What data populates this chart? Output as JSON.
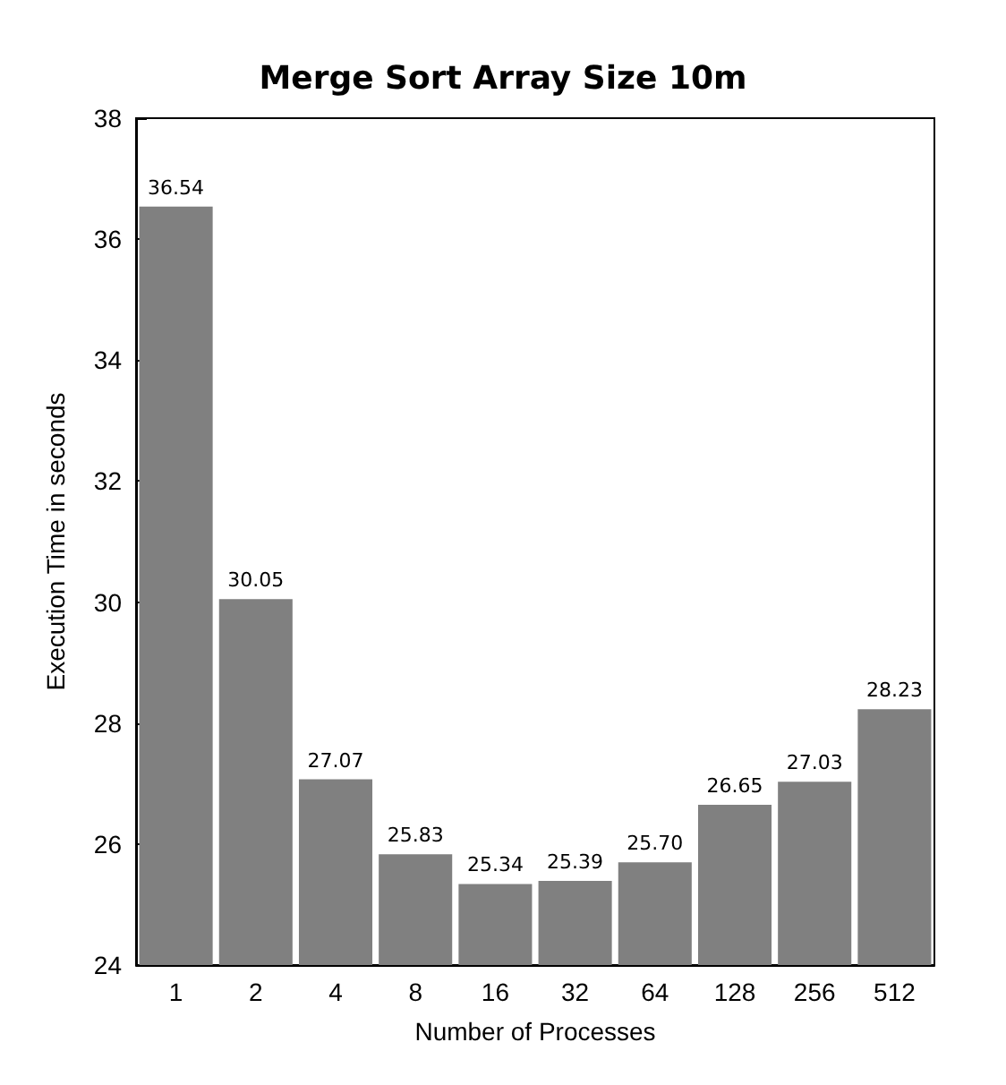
{
  "chart_data": {
    "type": "bar",
    "title": "Merge Sort Array Size 10m",
    "xlabel": "Number of Processes",
    "ylabel": "Execution Time in seconds",
    "categories": [
      "1",
      "2",
      "4",
      "8",
      "16",
      "32",
      "64",
      "128",
      "256",
      "512"
    ],
    "values": [
      36.54,
      30.05,
      27.07,
      25.83,
      25.34,
      25.39,
      25.7,
      26.65,
      27.03,
      28.23
    ],
    "value_labels": [
      "36.54",
      "30.05",
      "27.07",
      "25.83",
      "25.34",
      "25.39",
      "25.70",
      "26.65",
      "27.03",
      "28.23"
    ],
    "color": "#808080",
    "ylim": [
      24,
      38
    ],
    "yticks": [
      24,
      26,
      28,
      30,
      32,
      34,
      36,
      38
    ],
    "grid": false
  }
}
